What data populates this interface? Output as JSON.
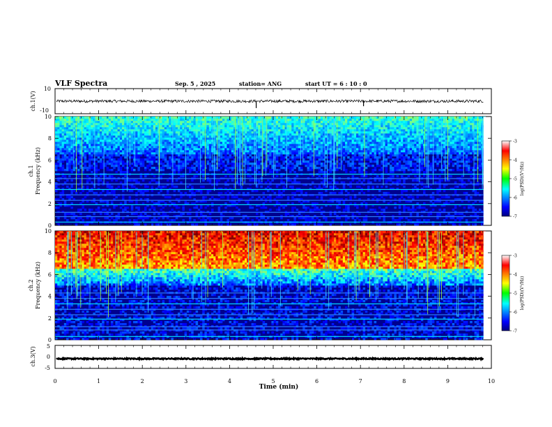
{
  "header": {
    "title": "VLF Spectra",
    "date": "Sep. 5 , 2025",
    "station": "station= ANG",
    "start": "start UT =  6 : 10 : 0"
  },
  "chart_data": [
    {
      "type": "line",
      "name": "ch1-voltage",
      "ylabel": "ch.1(V)",
      "ylim": [
        -10,
        10
      ],
      "ytick_labels": [
        "10",
        "-10"
      ],
      "baseline": 0,
      "xlim": [
        0,
        10
      ]
    },
    {
      "type": "heatmap",
      "name": "ch1-spectrogram",
      "ylabel": "ch.1\nFrequency (kHz)",
      "ylabel_line1": "ch.1",
      "ylabel_line2": "Frequency (kHz)",
      "ylim": [
        0,
        10
      ],
      "ytick_labels": [
        "0",
        "2",
        "4",
        "6",
        "8",
        "10"
      ],
      "xlim": [
        0,
        9.82
      ],
      "colorbar": {
        "label": "log(PSD)(V²/Hz)",
        "range": [
          -7,
          -3
        ],
        "tick_labels": [
          "-3",
          "-4",
          "-5",
          "-6",
          "-7"
        ]
      }
    },
    {
      "type": "heatmap",
      "name": "ch2-spectrogram",
      "ylabel": "ch.2\nFrequency (kHz)",
      "ylabel_line1": "ch.2",
      "ylabel_line2": "Frequency (kHz)",
      "ylim": [
        0,
        10
      ],
      "ytick_labels": [
        "0",
        "2",
        "4",
        "6",
        "8",
        "10"
      ],
      "xlim": [
        0,
        9.82
      ],
      "colorbar": {
        "label": "log(PSD)(V²/Hz)",
        "range": [
          -7,
          -3
        ],
        "tick_labels": [
          "-3",
          "-4",
          "-5",
          "-6",
          "-7"
        ]
      }
    },
    {
      "type": "line",
      "name": "ch3-voltage",
      "ylabel": "ch.3(V)",
      "ylim": [
        -5,
        5
      ],
      "ytick_labels": [
        "5",
        "0",
        "-5"
      ],
      "baseline": -0.8,
      "xlim": [
        0,
        10
      ]
    }
  ],
  "xaxis": {
    "label": "Time (min)",
    "range": [
      0,
      10
    ],
    "tick_labels": [
      "0",
      "1",
      "2",
      "3",
      "4",
      "5",
      "6",
      "7",
      "8",
      "9",
      "10"
    ]
  }
}
